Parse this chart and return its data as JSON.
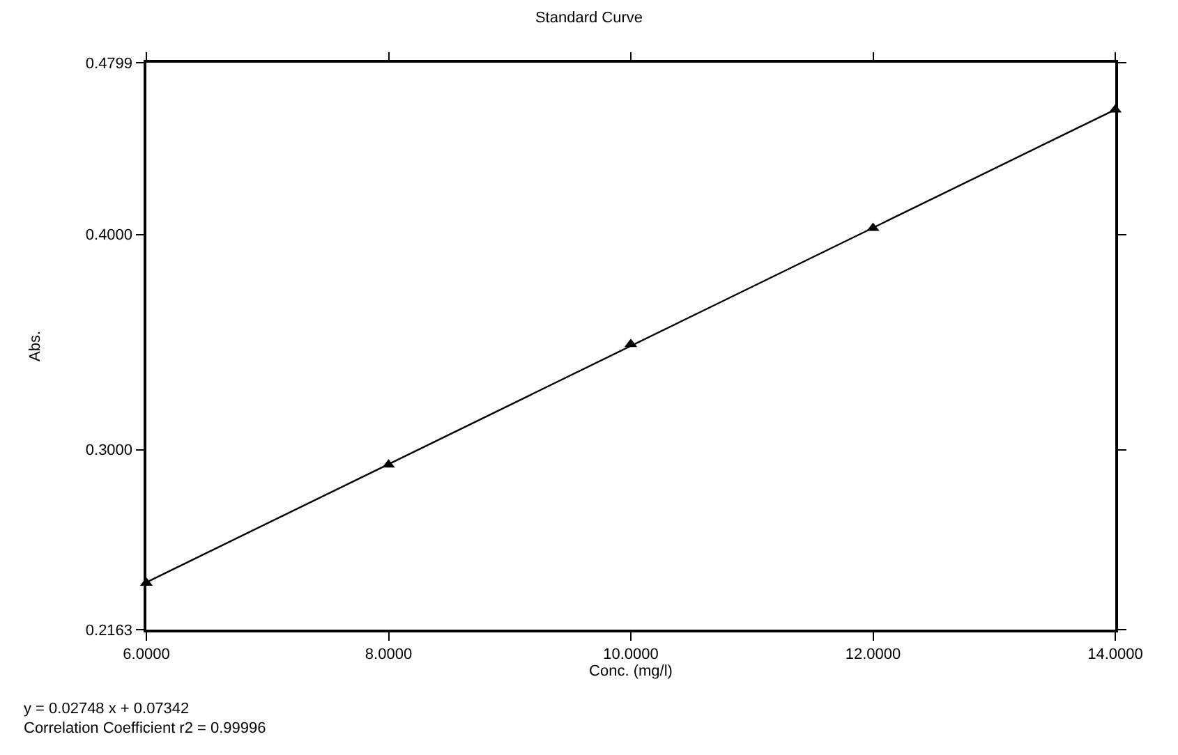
{
  "chart_data": {
    "type": "scatter",
    "title": "Standard Curve",
    "xlabel": "Conc. (mg/l)",
    "ylabel": "Abs.",
    "x": [
      6,
      8,
      10,
      12,
      14
    ],
    "series": [
      {
        "color": "#000000",
        "marker": "triangle",
        "values": [
          0.238,
          0.293,
          0.349,
          0.403,
          0.458
        ]
      },
      {
        "type": "line",
        "color": "#000000",
        "marker": "none",
        "line_style": "solid",
        "x": [
          6,
          14
        ],
        "values": [
          0.2383,
          0.4581
        ]
      }
    ],
    "xlim": [
      6,
      14
    ],
    "xticks": [
      {
        "value": 6,
        "label": "6.0000"
      },
      {
        "value": 8,
        "label": "8.0000"
      },
      {
        "value": 10,
        "label": "10.0000"
      },
      {
        "value": 12,
        "label": "12.0000"
      },
      {
        "value": 14,
        "label": "14.0000"
      }
    ],
    "ylim": [
      0.2163,
      0.4799
    ],
    "yticks": [
      {
        "value": 0.2163,
        "label": "0.2163"
      },
      {
        "value": 0.3,
        "label": "0.3000"
      },
      {
        "value": 0.4,
        "label": "0.4000"
      },
      {
        "value": 0.4799,
        "label": "0.4799"
      }
    ],
    "annotations": [
      "y = 0.02748 x + 0.07342",
      "Correlation Coefficient r2 = 0.99996"
    ]
  }
}
